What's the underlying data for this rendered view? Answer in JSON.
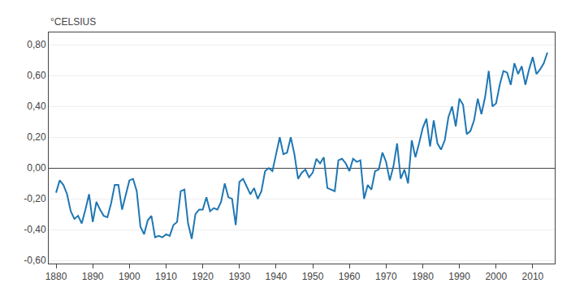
{
  "chart_data": {
    "type": "line",
    "ylabel": "°CELSIUS",
    "x": [
      1880,
      1881,
      1882,
      1883,
      1884,
      1885,
      1886,
      1887,
      1888,
      1889,
      1890,
      1891,
      1892,
      1893,
      1894,
      1895,
      1896,
      1897,
      1898,
      1899,
      1900,
      1901,
      1902,
      1903,
      1904,
      1905,
      1906,
      1907,
      1908,
      1909,
      1910,
      1911,
      1912,
      1913,
      1914,
      1915,
      1916,
      1917,
      1918,
      1919,
      1920,
      1921,
      1922,
      1923,
      1924,
      1925,
      1926,
      1927,
      1928,
      1929,
      1930,
      1931,
      1932,
      1933,
      1934,
      1935,
      1936,
      1937,
      1938,
      1939,
      1940,
      1941,
      1942,
      1943,
      1944,
      1945,
      1946,
      1947,
      1948,
      1949,
      1950,
      1951,
      1952,
      1953,
      1954,
      1955,
      1956,
      1957,
      1958,
      1959,
      1960,
      1961,
      1962,
      1963,
      1964,
      1965,
      1966,
      1967,
      1968,
      1969,
      1970,
      1971,
      1972,
      1973,
      1974,
      1975,
      1976,
      1977,
      1978,
      1979,
      1980,
      1981,
      1982,
      1983,
      1984,
      1985,
      1986,
      1987,
      1988,
      1989,
      1990,
      1991,
      1992,
      1993,
      1994,
      1995,
      1996,
      1997,
      1998,
      1999,
      2000,
      2001,
      2002,
      2003,
      2004,
      2005,
      2006,
      2007,
      2008,
      2009,
      2010,
      2011,
      2012,
      2013,
      2014
    ],
    "values": [
      -0.16,
      -0.08,
      -0.11,
      -0.17,
      -0.28,
      -0.33,
      -0.31,
      -0.36,
      -0.27,
      -0.17,
      -0.35,
      -0.22,
      -0.27,
      -0.31,
      -0.32,
      -0.23,
      -0.11,
      -0.11,
      -0.27,
      -0.18,
      -0.08,
      -0.07,
      -0.15,
      -0.38,
      -0.43,
      -0.34,
      -0.31,
      -0.45,
      -0.44,
      -0.45,
      -0.43,
      -0.44,
      -0.37,
      -0.35,
      -0.15,
      -0.14,
      -0.36,
      -0.46,
      -0.3,
      -0.27,
      -0.27,
      -0.19,
      -0.28,
      -0.26,
      -0.27,
      -0.22,
      -0.1,
      -0.19,
      -0.2,
      -0.37,
      -0.09,
      -0.07,
      -0.12,
      -0.17,
      -0.13,
      -0.2,
      -0.15,
      -0.02,
      -0.0,
      -0.02,
      0.09,
      0.2,
      0.09,
      0.1,
      0.2,
      0.09,
      -0.07,
      -0.03,
      -0.01,
      -0.06,
      -0.03,
      0.06,
      0.03,
      0.07,
      -0.13,
      -0.14,
      -0.15,
      0.05,
      0.06,
      0.03,
      -0.02,
      0.06,
      0.04,
      0.05,
      -0.2,
      -0.11,
      -0.14,
      -0.02,
      -0.01,
      0.1,
      0.04,
      -0.08,
      0.01,
      0.16,
      -0.07,
      -0.01,
      -0.1,
      0.18,
      0.07,
      0.16,
      0.26,
      0.32,
      0.14,
      0.31,
      0.16,
      0.12,
      0.18,
      0.33,
      0.4,
      0.27,
      0.45,
      0.41,
      0.22,
      0.24,
      0.31,
      0.45,
      0.35,
      0.46,
      0.63,
      0.4,
      0.42,
      0.54,
      0.63,
      0.62,
      0.54,
      0.68,
      0.61,
      0.66,
      0.54,
      0.64,
      0.72,
      0.61,
      0.64,
      0.68,
      0.75
    ],
    "xlim": [
      1878,
      2016
    ],
    "ylim": [
      -0.62,
      0.88
    ],
    "xticks": [
      1880,
      1890,
      1900,
      1910,
      1920,
      1930,
      1940,
      1950,
      1960,
      1970,
      1980,
      1990,
      2000,
      2010
    ],
    "yticks": [
      {
        "value": -0.6,
        "label": "-0,60"
      },
      {
        "value": -0.4,
        "label": "-0,40"
      },
      {
        "value": -0.2,
        "label": "-0,20"
      },
      {
        "value": 0.0,
        "label": "0,00"
      },
      {
        "value": 0.2,
        "label": "0,20"
      },
      {
        "value": 0.4,
        "label": "0,40"
      },
      {
        "value": 0.6,
        "label": "0,60"
      },
      {
        "value": 0.8,
        "label": "0,80"
      }
    ],
    "grid": true
  }
}
